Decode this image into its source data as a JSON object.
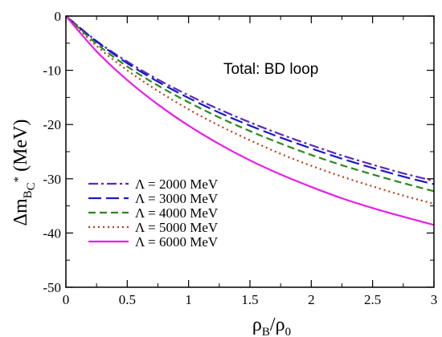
{
  "chart_data": {
    "type": "line",
    "xlabel": {
      "main": "ρ",
      "sub": "B",
      "mid": "/ρ",
      "sub2": "0"
    },
    "ylabel": {
      "main": "Δm",
      "sub": "B",
      "subsub": "C",
      "sup": "*",
      "unit": " (MeV)"
    },
    "xlim": [
      0,
      3
    ],
    "ylim": [
      -50,
      0
    ],
    "xticks": [
      "0",
      "0.5",
      "1",
      "1.5",
      "2",
      "2.5",
      "3"
    ],
    "yticks": [
      "0",
      "-10",
      "-20",
      "-30",
      "-40",
      "-50"
    ],
    "annotation": "Total: BD loop",
    "grid": false,
    "legend_position": "lower-left",
    "x": [
      0,
      0.25,
      0.5,
      0.75,
      1.0,
      1.25,
      1.5,
      1.75,
      2.0,
      2.25,
      2.5,
      2.75,
      3.0
    ],
    "series": [
      {
        "name": "Λ = 2000 MeV",
        "color": "#5b2bb8",
        "dash": "12,4,3,4",
        "values": [
          0,
          -4.6,
          -8.4,
          -11.7,
          -14.6,
          -17.2,
          -19.6,
          -21.8,
          -23.8,
          -25.7,
          -27.4,
          -29.0,
          -30.4
        ]
      },
      {
        "name": "Λ = 3000 MeV",
        "color": "#1a1acc",
        "dash": "16,6",
        "values": [
          0,
          -4.7,
          -8.7,
          -12.1,
          -15.1,
          -17.8,
          -20.2,
          -22.4,
          -24.4,
          -26.3,
          -28.0,
          -29.6,
          -31.0
        ]
      },
      {
        "name": "Λ = 4000 MeV",
        "color": "#2a8a1a",
        "dash": "9,5",
        "values": [
          0,
          -5.1,
          -9.3,
          -12.8,
          -15.9,
          -18.7,
          -21.2,
          -23.5,
          -25.6,
          -27.5,
          -29.2,
          -30.8,
          -32.3
        ]
      },
      {
        "name": "Λ = 5000 MeV",
        "color": "#c03a10",
        "dash": "2,4",
        "values": [
          0,
          -5.5,
          -10.0,
          -13.8,
          -17.2,
          -20.2,
          -22.9,
          -25.4,
          -27.6,
          -29.6,
          -31.4,
          -33.1,
          -34.6
        ]
      },
      {
        "name": "Λ = 6000 MeV",
        "color": "#e81ee8",
        "dash": "",
        "values": [
          0,
          -6.5,
          -11.8,
          -16.3,
          -20.2,
          -23.6,
          -26.6,
          -29.2,
          -31.5,
          -33.6,
          -35.4,
          -37.0,
          -38.5
        ]
      }
    ]
  }
}
